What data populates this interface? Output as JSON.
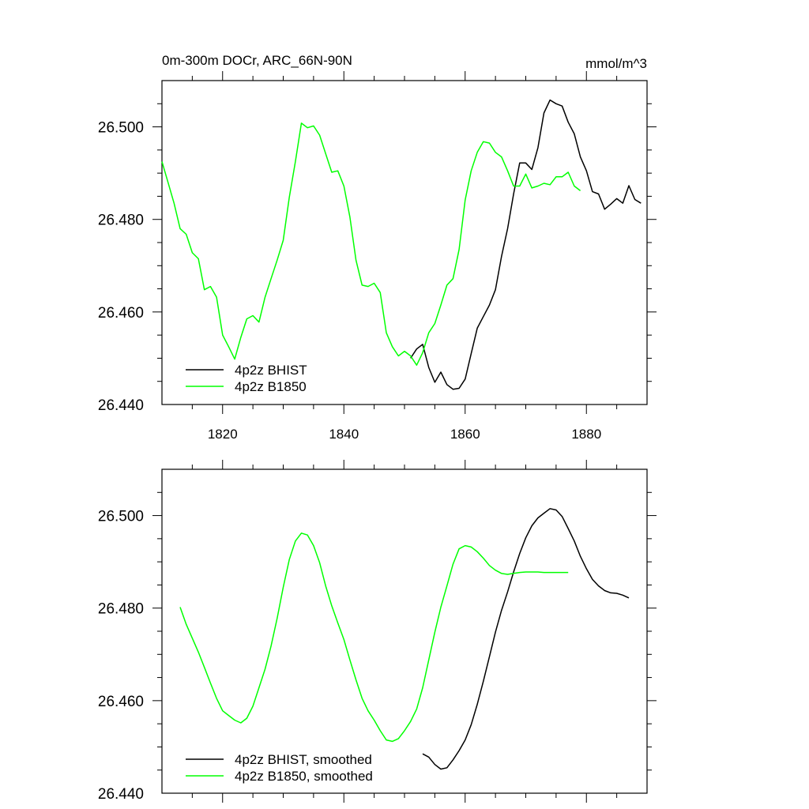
{
  "chart_data": [
    {
      "type": "line",
      "title": "0m-300m DOCr, ARC_66N-90N",
      "units": "mmol/m^3",
      "xlim": [
        1810,
        1890
      ],
      "ylim": [
        26.44,
        26.51
      ],
      "x_ticks": [
        1820,
        1840,
        1860,
        1880
      ],
      "x_ticklabels": [
        "1820",
        "1840",
        "1860",
        "1880"
      ],
      "y_ticks": [
        26.44,
        26.46,
        26.48,
        26.5
      ],
      "y_ticklabels": [
        "26.440",
        "26.460",
        "26.480",
        "26.500"
      ],
      "legend_position": "bottom-left",
      "series": [
        {
          "name": "4p2z BHIST",
          "color": "#000000",
          "x": [
            1851,
            1852,
            1853,
            1854,
            1855,
            1856,
            1857,
            1858,
            1859,
            1860,
            1861,
            1862,
            1863,
            1864,
            1865,
            1866,
            1867,
            1868,
            1869,
            1870,
            1871,
            1872,
            1873,
            1874,
            1875,
            1876,
            1877,
            1878,
            1879,
            1880,
            1881,
            1882,
            1883,
            1884,
            1885,
            1886,
            1887,
            1888,
            1889
          ],
          "values": [
            26.45,
            26.452,
            26.453,
            26.448,
            26.4448,
            26.447,
            26.4443,
            26.4433,
            26.4435,
            26.4455,
            26.451,
            26.4565,
            26.459,
            26.4615,
            26.4648,
            26.472,
            26.478,
            26.4855,
            26.4922,
            26.4922,
            26.4908,
            26.4955,
            26.503,
            26.5058,
            26.505,
            26.5045,
            26.501,
            26.4985,
            26.4935,
            26.4905,
            26.486,
            26.4855,
            26.4822,
            26.4833,
            26.4845,
            26.4835,
            26.4873,
            26.4843,
            26.4835
          ]
        },
        {
          "name": "4p2z B1850",
          "color": "#00ff00",
          "x": [
            1810,
            1811,
            1812,
            1813,
            1814,
            1815,
            1816,
            1817,
            1818,
            1819,
            1820,
            1821,
            1822,
            1823,
            1824,
            1825,
            1826,
            1827,
            1828,
            1829,
            1830,
            1831,
            1832,
            1833,
            1834,
            1835,
            1836,
            1837,
            1838,
            1839,
            1840,
            1841,
            1842,
            1843,
            1844,
            1845,
            1846,
            1847,
            1848,
            1849,
            1850,
            1851,
            1852,
            1853,
            1854,
            1855,
            1856,
            1857,
            1858,
            1859,
            1860,
            1861,
            1862,
            1863,
            1864,
            1865,
            1866,
            1867,
            1868,
            1869,
            1870,
            1871,
            1872,
            1873,
            1874,
            1875,
            1876,
            1877,
            1878,
            1879
          ],
          "values": [
            26.4925,
            26.488,
            26.4835,
            26.478,
            26.4768,
            26.4728,
            26.4715,
            26.4648,
            26.4655,
            26.4632,
            26.455,
            26.4525,
            26.4498,
            26.4545,
            26.4585,
            26.4592,
            26.4578,
            26.4632,
            26.4672,
            26.4712,
            26.4755,
            26.4848,
            26.4925,
            26.5008,
            26.4998,
            26.5002,
            26.4982,
            26.4942,
            26.4902,
            26.4905,
            26.4872,
            26.4805,
            26.4712,
            26.4658,
            26.4655,
            26.4662,
            26.4642,
            26.4555,
            26.4525,
            26.4505,
            26.4515,
            26.4505,
            26.4485,
            26.4512,
            26.4555,
            26.4575,
            26.4615,
            26.4658,
            26.4672,
            26.4735,
            26.4842,
            26.4905,
            26.4945,
            26.4968,
            26.4965,
            26.4945,
            26.4935,
            26.4905,
            26.4872,
            26.4872,
            26.4898,
            26.4868,
            26.4872,
            26.4878,
            26.4875,
            26.4892,
            26.4892,
            26.4902,
            26.4872,
            26.4862
          ]
        }
      ]
    },
    {
      "type": "line",
      "title": "",
      "xlim": [
        1810,
        1890
      ],
      "ylim": [
        26.44,
        26.51
      ],
      "x_ticks": [
        1820,
        1840,
        1860,
        1880
      ],
      "y_ticks": [
        26.44,
        26.46,
        26.48,
        26.5
      ],
      "y_ticklabels": [
        "26.440",
        "26.460",
        "26.480",
        "26.500"
      ],
      "legend_position": "bottom-left",
      "series": [
        {
          "name": "4p2z BHIST, smoothed",
          "color": "#000000",
          "x": [
            1853,
            1854,
            1855,
            1856,
            1857,
            1858,
            1859,
            1860,
            1861,
            1862,
            1863,
            1864,
            1865,
            1866,
            1867,
            1868,
            1869,
            1870,
            1871,
            1872,
            1873,
            1874,
            1875,
            1876,
            1877,
            1878,
            1879,
            1880,
            1881,
            1882,
            1883,
            1884,
            1885,
            1886,
            1887
          ],
          "values": [
            26.4485,
            26.4478,
            26.4462,
            26.4452,
            26.4455,
            26.4472,
            26.4492,
            26.4515,
            26.4548,
            26.4592,
            26.4642,
            26.4695,
            26.4748,
            26.4795,
            26.4835,
            26.4878,
            26.4918,
            26.4952,
            26.4978,
            26.4995,
            26.5005,
            26.5015,
            26.5012,
            26.4998,
            26.4972,
            26.4945,
            26.4912,
            26.4885,
            26.4862,
            26.4848,
            26.4838,
            26.4833,
            26.4832,
            26.4828,
            26.4822
          ]
        },
        {
          "name": "4p2z B1850, smoothed",
          "color": "#00ff00",
          "x": [
            1813,
            1814,
            1815,
            1816,
            1817,
            1818,
            1819,
            1820,
            1821,
            1822,
            1823,
            1824,
            1825,
            1826,
            1827,
            1828,
            1829,
            1830,
            1831,
            1832,
            1833,
            1834,
            1835,
            1836,
            1837,
            1838,
            1839,
            1840,
            1841,
            1842,
            1843,
            1844,
            1845,
            1846,
            1847,
            1848,
            1849,
            1850,
            1851,
            1852,
            1853,
            1854,
            1855,
            1856,
            1857,
            1858,
            1859,
            1860,
            1861,
            1862,
            1863,
            1864,
            1865,
            1866,
            1867,
            1868,
            1869,
            1870,
            1871,
            1872,
            1873,
            1874,
            1875,
            1876,
            1877
          ],
          "values": [
            26.4802,
            26.4765,
            26.4735,
            26.4705,
            26.4672,
            26.4638,
            26.4605,
            26.4578,
            26.4568,
            26.4558,
            26.4552,
            26.4562,
            26.4588,
            26.4628,
            26.4668,
            26.4718,
            26.4778,
            26.4845,
            26.4905,
            26.4945,
            26.4962,
            26.4958,
            26.4935,
            26.4898,
            26.4848,
            26.4805,
            26.4768,
            26.4732,
            26.4688,
            26.4645,
            26.4605,
            26.4578,
            26.4558,
            26.4535,
            26.4515,
            26.4512,
            26.4518,
            26.4535,
            26.4555,
            26.4582,
            26.4628,
            26.4688,
            26.4748,
            26.4802,
            26.4848,
            26.4895,
            26.4928,
            26.4935,
            26.4932,
            26.4922,
            26.4908,
            26.4892,
            26.4882,
            26.4875,
            26.4873,
            26.4875,
            26.4877,
            26.4878,
            26.4878,
            26.4878,
            26.4877,
            26.4877,
            26.4877,
            26.4877,
            26.4877
          ]
        }
      ]
    }
  ]
}
